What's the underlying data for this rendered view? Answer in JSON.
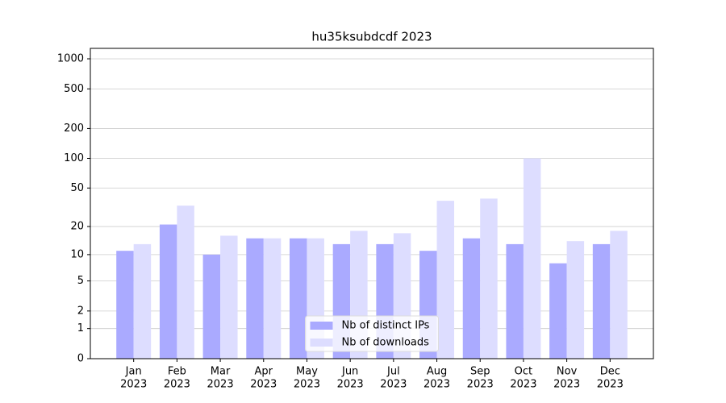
{
  "chart_data": {
    "type": "bar",
    "title": "hu35ksubdcdf 2023",
    "categories": [
      [
        "Jan",
        "2023"
      ],
      [
        "Feb",
        "2023"
      ],
      [
        "Mar",
        "2023"
      ],
      [
        "Apr",
        "2023"
      ],
      [
        "May",
        "2023"
      ],
      [
        "Jun",
        "2023"
      ],
      [
        "Jul",
        "2023"
      ],
      [
        "Aug",
        "2023"
      ],
      [
        "Sep",
        "2023"
      ],
      [
        "Oct",
        "2023"
      ],
      [
        "Nov",
        "2023"
      ],
      [
        "Dec",
        "2023"
      ]
    ],
    "series": [
      {
        "name": "Nb of distinct IPs",
        "color": "#aaaaff",
        "values": [
          11,
          21,
          10,
          15,
          15,
          13,
          13,
          11,
          15,
          13,
          8,
          13
        ]
      },
      {
        "name": "Nb of downloads",
        "color": "#ddddff",
        "values": [
          13,
          33,
          16,
          15,
          15,
          18,
          17,
          37,
          39,
          100,
          14,
          18
        ]
      }
    ],
    "ylim": [
      0,
      1273
    ],
    "yticks": [
      0,
      1,
      2,
      5,
      10,
      20,
      50,
      100,
      200,
      500,
      1000
    ],
    "grid": true,
    "legend": "lower center"
  }
}
